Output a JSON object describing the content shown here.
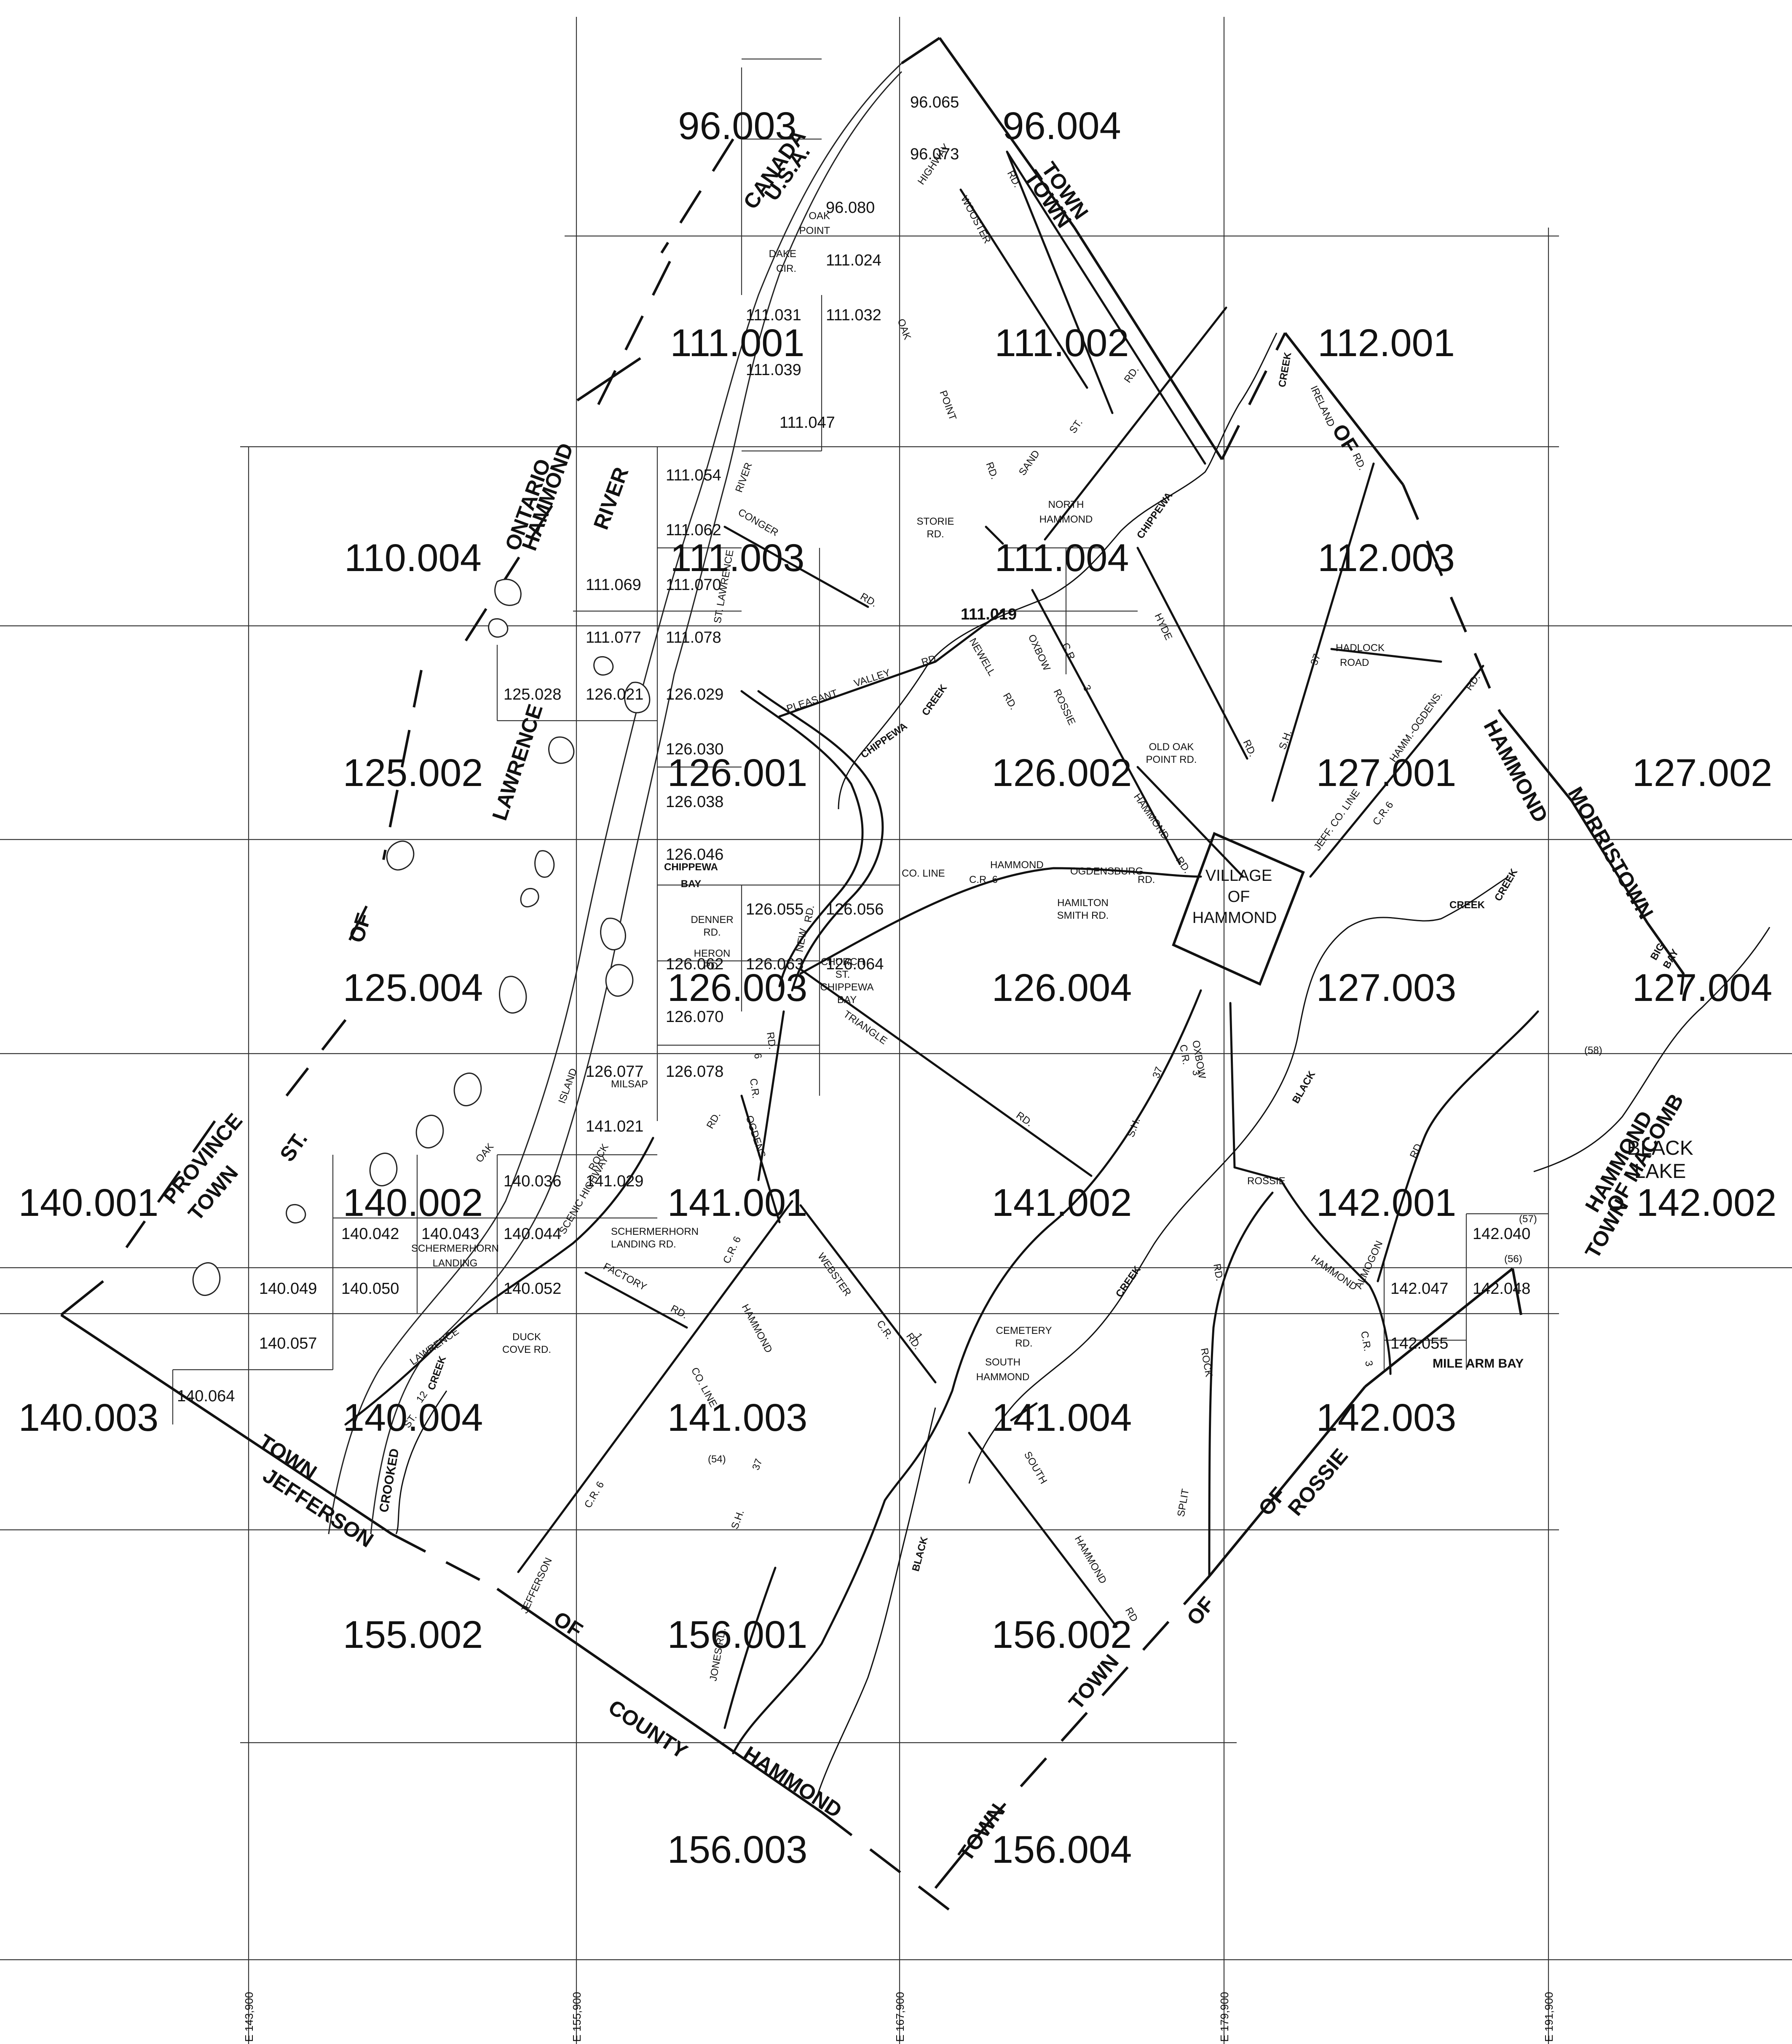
{
  "sheet_ids_large": [
    "96.003",
    "96.004",
    "111.001",
    "111.002",
    "112.001",
    "110.004",
    "111.003",
    "111.004",
    "112.003",
    "125.002",
    "126.001",
    "126.002",
    "127.001",
    "127.002",
    "125.004",
    "126.003",
    "126.004",
    "127.003",
    "127.004",
    "140.001",
    "140.002",
    "141.001",
    "141.002",
    "142.001",
    "142.002",
    "140.003",
    "140.004",
    "141.003",
    "141.004",
    "142.003",
    "155.002",
    "156.001",
    "156.002",
    "156.003",
    "156.004"
  ],
  "sheet_ids_small": [
    "96.065",
    "96.073",
    "96.080",
    "111.024",
    "111.031",
    "111.032",
    "111.039",
    "111.047",
    "111.054",
    "111.062",
    "111.069",
    "111.070",
    "111.077",
    "111.078",
    "111.019",
    "125.028",
    "126.021",
    "126.029",
    "126.030",
    "126.038",
    "126.046",
    "126.055",
    "126.056",
    "126.062",
    "126.063",
    "126.064",
    "126.070",
    "126.077",
    "126.078",
    "141.021",
    "140.036",
    "141.029",
    "140.042",
    "140.043",
    "140.044",
    "140.049",
    "140.050",
    "140.052",
    "140.057",
    "140.064",
    "142.040",
    "142.047",
    "142.048",
    "142.055"
  ],
  "water_labels": [
    "CANADA",
    "U.S.A.",
    "ONTARIO",
    "HAMMOND",
    "RIVER",
    "LAWRENCE",
    "OF",
    "ST.",
    "PROVINCE",
    "TOWN"
  ],
  "boundary_labels": [
    "TOWN",
    "TOWN",
    "OF",
    "HAMMOND",
    "MORRISTOWN",
    "HAMMOND",
    "OF MACOMB",
    "TOWN",
    "OF",
    "ROSSIE",
    "TOWN",
    "JEFFERSON",
    "OF",
    "COUNTY",
    "HAMMOND",
    "TOWN",
    "TOWN",
    "OF"
  ],
  "places": [
    "BLACK",
    "LAKE",
    "VILLAGE",
    "OF",
    "HAMMOND",
    "NORTH",
    "HAMMOND",
    "SOUTH",
    "HAMMOND",
    "CHIPPEWA",
    "BAY",
    "MILE ARM BAY",
    "BIG",
    "BAY",
    "OAK",
    "POINT",
    "DAKE",
    "CIR.",
    "SCHERMERHORN",
    "LANDING",
    "CHURCH",
    "ST.",
    "CHIPPEWA",
    "BAY",
    "HERON",
    "RD.",
    "DENNER",
    "RD.",
    "MILSAP",
    "STORIE",
    "RD."
  ],
  "roads": [
    "WOOSTER",
    "RD.",
    "OAK",
    "POINT",
    "RD.",
    "SAND",
    "ST.",
    "RD.",
    "CONGER",
    "RD.",
    "PLEASANT",
    "VALLEY",
    "RD.",
    "OXBOW",
    "ROSSIE",
    "C.R.",
    "3",
    "HYDE",
    "RD.",
    "S.H.",
    "37",
    "HADLOCK",
    "ROAD",
    "HAMM.-OGDENS.",
    "RD.",
    "JEFF. CO. LINE",
    "C.R.",
    "6",
    "OLD OAK",
    "POINT RD.",
    "HAMMOND",
    "RD.",
    "HAMMOND",
    "OGDENSBURG",
    "RD.",
    "C.R. 6",
    "CO. LINE",
    "HAMILTON",
    "SMITH RD.",
    "TRIANGLE",
    "RD.",
    "C.R.",
    "6",
    "RD.",
    "OGDENS.",
    "RD.",
    "S.H.",
    "37",
    "OXBOW",
    "C.R.",
    "3",
    "ROSSIE",
    "HAMMOND",
    "ALMOGON",
    "RD.",
    "C.R.",
    "3",
    "SCHERMERHORN",
    "LANDING RD.",
    "FACTORY",
    "RD.",
    "C.R. 6",
    "HAMMOND",
    "CO. LINE",
    "WEBSTER",
    "C.R.",
    "1",
    "RD.",
    "CEMETERY",
    "RD.",
    "DUCK",
    "COVE RD.",
    "C.R. 6",
    "S.H.",
    "37",
    "SOUTH",
    "HAMMOND",
    "RD",
    "JONES RD.",
    "JEFFERSON",
    "SPLIT",
    "ROCK",
    "RD.",
    "NEWELL",
    "RD.",
    "NEW",
    "RD.",
    "ISLAND",
    "OAK",
    "CROOKED",
    "CREEK",
    "CREEK",
    "CREEK",
    "CREEK",
    "CREEK",
    "CREEK",
    "BLACK",
    "BLACK",
    "CHIPPEWA",
    "CHIPPEWA",
    "IRELAND",
    "RD.",
    "ST.",
    "LAWRENCE",
    "12",
    "SCENIC HIGHWAY",
    "ROCK",
    "ST. LAWRENCE",
    "HIGHWAY",
    "RIVER",
    "(54)",
    "(58)",
    "(57)",
    "(56)"
  ],
  "easting_labels": [
    "E 143,900",
    "E 155,900",
    "E 167,900",
    "E 179,900",
    "E 191,900"
  ]
}
